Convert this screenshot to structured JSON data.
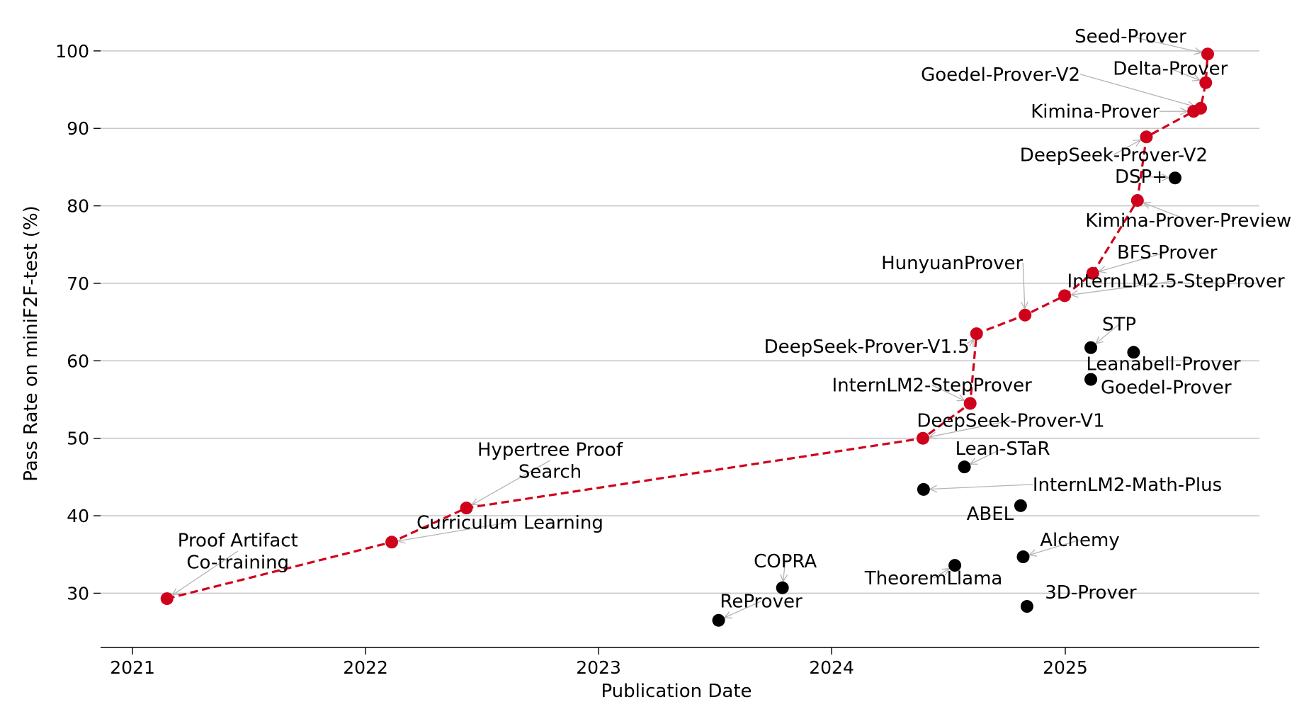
{
  "chart_data": {
    "type": "scatter",
    "xlabel": "Publication Date",
    "ylabel": "Pass Rate on miniF2F-test (%)",
    "xlim": [
      "2020-11-12",
      "2025-11-01"
    ],
    "ylim": [
      23,
      102
    ],
    "x_ticks": [
      "2021",
      "2022",
      "2023",
      "2024",
      "2025"
    ],
    "y_ticks": [
      30,
      40,
      50,
      60,
      70,
      80,
      90,
      100
    ],
    "grid": "horizontal",
    "colors": {
      "frontier": "#d0021b",
      "other": "#000000",
      "grid": "#c8c8c8",
      "arrow": "#b4b4b4"
    },
    "series": [
      {
        "role": "frontier",
        "points": [
          {
            "label": [
              "Proof Artifact",
              "Co-training"
            ],
            "date": "2021-02-24",
            "value": 29.3
          },
          {
            "label": [
              "Curriculum Learning"
            ],
            "date": "2022-02-11",
            "value": 36.6
          },
          {
            "label": [
              "Hypertree Proof",
              "Search"
            ],
            "date": "2022-06-08",
            "value": 41.0
          },
          {
            "label": [
              "DeepSeek-Prover-V1"
            ],
            "date": "2024-05-23",
            "value": 50.0
          },
          {
            "label": [
              "InternLM2-StepProver"
            ],
            "date": "2024-08-05",
            "value": 54.5
          },
          {
            "label": [
              "DeepSeek-Prover-V1.5"
            ],
            "date": "2024-08-15",
            "value": 63.5
          },
          {
            "label": [
              "HunyuanProver"
            ],
            "date": "2024-10-30",
            "value": 65.9
          },
          {
            "label": [
              "InternLM2.5-StepProver"
            ],
            "date": "2024-12-31",
            "value": 68.4
          },
          {
            "label": [
              "BFS-Prover"
            ],
            "date": "2025-02-13",
            "value": 71.3
          },
          {
            "label": [
              "Kimina-Prover-Preview"
            ],
            "date": "2025-04-24",
            "value": 80.7
          },
          {
            "label": [
              "DeepSeek-Prover-V2"
            ],
            "date": "2025-05-08",
            "value": 88.9
          },
          {
            "label": [
              "Kimina-Prover"
            ],
            "date": "2025-07-21",
            "value": 92.2
          },
          {
            "label": [
              "Goedel-Prover-V2"
            ],
            "date": "2025-08-01",
            "value": 92.6
          },
          {
            "label": [
              "Delta-Prover"
            ],
            "date": "2025-08-09",
            "value": 95.9
          },
          {
            "label": [
              "Seed-Prover"
            ],
            "date": "2025-08-12",
            "value": 99.6
          }
        ]
      },
      {
        "role": "other",
        "points": [
          {
            "label": [
              "ReProver"
            ],
            "date": "2023-07-08",
            "value": 26.5
          },
          {
            "label": [
              "COPRA"
            ],
            "date": "2023-10-16",
            "value": 30.7
          },
          {
            "label": [
              "InternLM2-Math-Plus"
            ],
            "date": "2024-05-24",
            "value": 43.4
          },
          {
            "label": [
              "TheoremLlama"
            ],
            "date": "2024-07-12",
            "value": 33.6
          },
          {
            "label": [
              "Lean-STaR"
            ],
            "date": "2024-07-27",
            "value": 46.3
          },
          {
            "label": [
              "ABEL"
            ],
            "date": "2024-10-23",
            "value": 41.3
          },
          {
            "label": [
              "Alchemy"
            ],
            "date": "2024-10-27",
            "value": 34.7
          },
          {
            "label": [
              "3D-Prover"
            ],
            "date": "2024-11-02",
            "value": 28.3
          },
          {
            "label": [
              "STP"
            ],
            "date": "2025-02-10",
            "value": 61.7
          },
          {
            "label": [
              "Goedel-Prover"
            ],
            "date": "2025-02-10",
            "value": 57.6
          },
          {
            "label": [
              "Leanabell-Prover"
            ],
            "date": "2025-04-18",
            "value": 61.1
          },
          {
            "label": [
              "DSP+"
            ],
            "date": "2025-06-22",
            "value": 83.6
          }
        ]
      }
    ]
  }
}
